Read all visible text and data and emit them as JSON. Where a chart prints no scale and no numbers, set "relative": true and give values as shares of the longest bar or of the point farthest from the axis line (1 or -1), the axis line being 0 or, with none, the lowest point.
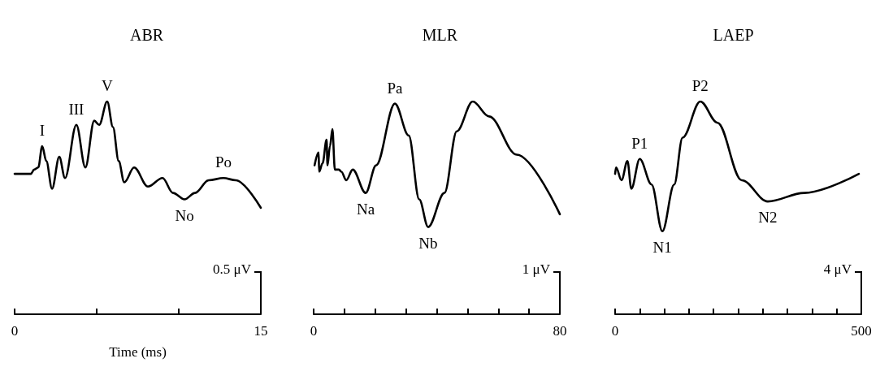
{
  "chart_data": [
    {
      "type": "line",
      "title": "ABR",
      "xlabel": "Time (ms)",
      "relative": true,
      "color": "#000000",
      "marker": "none",
      "x": [
        0,
        0.99,
        1.19,
        1.44,
        1.68,
        1.93,
        2.28,
        2.72,
        3.07,
        3.76,
        4.31,
        4.85,
        5.15,
        5.64,
        5.99,
        6.34,
        6.68,
        7.28,
        8.12,
        9.01,
        9.65,
        10.35,
        10.99,
        11.83,
        12.72,
        13.47,
        15
      ],
      "values": [
        0.66,
        0.66,
        0.68,
        0.69,
        0.79,
        0.72,
        0.59,
        0.74,
        0.64,
        0.89,
        0.69,
        0.91,
        0.89,
        1,
        0.88,
        0.72,
        0.62,
        0.69,
        0.6,
        0.64,
        0.57,
        0.54,
        0.57,
        0.63,
        0.64,
        0.63,
        0.5
      ],
      "xlim": [
        0,
        15
      ],
      "xticks": [
        0,
        {
          "value": 5,
          "label": null
        },
        {
          "value": 10,
          "label": null
        },
        15
      ],
      "annotations": [
        {
          "text": "I",
          "x": 1.68,
          "y": 0.79
        },
        {
          "text": "III",
          "x": 3.76,
          "y": 0.89
        },
        {
          "text": "V",
          "x": 5.64,
          "y": 1
        },
        {
          "text": "No",
          "x": 10.35,
          "y": 0.54
        },
        {
          "text": "Po",
          "x": 12.72,
          "y": 0.64
        },
        "0.5 μV"
      ]
    },
    {
      "type": "line",
      "title": "MLR",
      "relative": true,
      "color": "#000000",
      "marker": "none",
      "x": [
        0.3,
        1.6,
        1.8,
        2.9,
        4.2,
        4.5,
        5.3,
        6.1,
        6.9,
        8.2,
        9,
        10.6,
        12.7,
        16.9,
        20.3,
        26.4,
        30.9,
        34.3,
        37.2,
        42.5,
        46.5,
        51.7,
        57,
        66,
        80
      ],
      "values": [
        0.7,
        0.76,
        0.67,
        0.71,
        0.82,
        0.7,
        0.79,
        0.87,
        0.68,
        0.68,
        0.67,
        0.63,
        0.68,
        0.57,
        0.7,
        0.99,
        0.84,
        0.54,
        0.41,
        0.57,
        0.86,
        1,
        0.93,
        0.75,
        0.47
      ],
      "xlim": [
        0,
        80
      ],
      "xticks": [
        0,
        {
          "value": 10,
          "label": null
        },
        {
          "value": 20,
          "label": null
        },
        {
          "value": 30,
          "label": null
        },
        {
          "value": 40,
          "label": null
        },
        {
          "value": 50,
          "label": null
        },
        {
          "value": 60,
          "label": null
        },
        {
          "value": 70,
          "label": null
        },
        80
      ],
      "annotations": [
        {
          "text": "Na",
          "x": 16.9,
          "y": 0.57
        },
        {
          "text": "Pa",
          "x": 26.4,
          "y": 0.99
        },
        {
          "text": "Nb",
          "x": 37.2,
          "y": 0.41
        },
        "1 μV"
      ]
    },
    {
      "type": "line",
      "title": "LAEP",
      "relative": true,
      "color": "#000000",
      "marker": "none",
      "x": [
        0,
        2,
        13,
        25,
        33,
        50,
        74,
        96,
        120,
        137,
        173,
        208,
        257,
        310,
        384,
        495
      ],
      "values": [
        0.66,
        0.69,
        0.63,
        0.72,
        0.59,
        0.73,
        0.61,
        0.39,
        0.61,
        0.83,
        1,
        0.9,
        0.63,
        0.53,
        0.57,
        0.66
      ],
      "xlim": [
        0,
        500
      ],
      "xticks": [
        0,
        {
          "value": 50,
          "label": null
        },
        {
          "value": 100,
          "label": null
        },
        {
          "value": 150,
          "label": null
        },
        {
          "value": 200,
          "label": null
        },
        {
          "value": 250,
          "label": null
        },
        {
          "value": 300,
          "label": null
        },
        {
          "value": 350,
          "label": null
        },
        {
          "value": 400,
          "label": null
        },
        {
          "value": 450,
          "label": null
        },
        500
      ],
      "annotations": [
        {
          "text": "P1",
          "x": 50,
          "y": 0.73
        },
        {
          "text": "N1",
          "x": 96,
          "y": 0.39
        },
        {
          "text": "P2",
          "x": 173,
          "y": 1
        },
        {
          "text": "N2",
          "x": 310,
          "y": 0.53
        },
        "4 μV"
      ]
    }
  ]
}
